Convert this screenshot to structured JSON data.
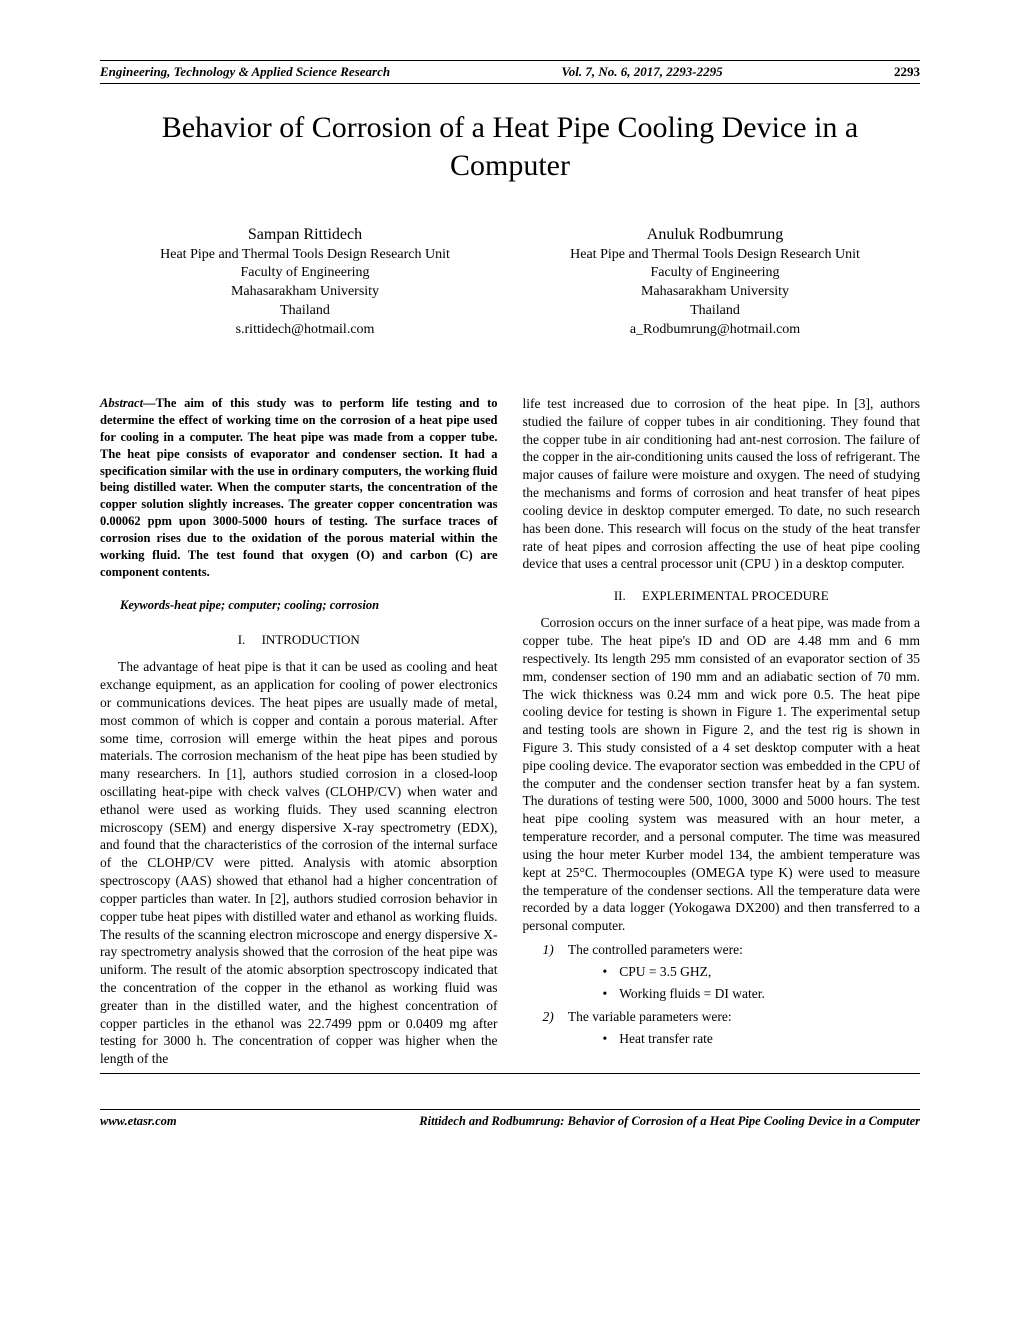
{
  "header": {
    "journal": "Engineering, Technology & Applied Science Research",
    "issue": "Vol. 7, No. 6, 2017, 2293-2295",
    "page": "2293"
  },
  "title": "Behavior of Corrosion of a Heat Pipe Cooling Device in a Computer",
  "authors": [
    {
      "name": "Sampan Rittidech",
      "unit": "Heat Pipe and Thermal Tools Design Research Unit",
      "faculty": "Faculty of Engineering",
      "university": "Mahasarakham University",
      "country": "Thailand",
      "email": "s.rittidech@hotmail.com"
    },
    {
      "name": "Anuluk Rodbumrung",
      "unit": "Heat Pipe and Thermal Tools Design Research Unit",
      "faculty": "Faculty of Engineering",
      "university": "Mahasarakham University",
      "country": "Thailand",
      "email": "a_Rodbumrung@hotmail.com"
    }
  ],
  "abstract": {
    "label": "Abstract—",
    "text": "The aim of this study was to perform life testing and to determine the effect of working time on the corrosion of a heat pipe used for cooling in a computer. The heat pipe was made from a copper tube. The heat pipe consists of evaporator and condenser section. It had a specification similar with the use in ordinary computers, the working fluid being distilled water. When the computer starts, the concentration of the copper solution slightly increases. The greater copper concentration was 0.00062 ppm upon 3000-5000 hours of testing. The surface traces of corrosion rises due to the oxidation of the porous material within the working fluid. The test found that oxygen (O) and carbon (C) are component contents."
  },
  "keywords": "Keywords-heat pipe; computer; cooling; corrosion",
  "sections": {
    "intro": {
      "num": "I.",
      "name": "INTRODUCTION",
      "para1": "The advantage of heat pipe is that it can be used as cooling and heat exchange equipment, as an application for cooling of power electronics or communications devices. The heat pipes are usually made of metal, most common of which is copper and contain a porous material. After some time, corrosion will emerge within the heat pipes and porous materials. The corrosion mechanism of the heat pipe has been studied by many researchers. In [1], authors studied corrosion in a closed-loop oscillating heat-pipe with check valves (CLOHP/CV) when water and ethanol were used as working fluids. They used scanning electron microscopy (SEM) and energy dispersive X-ray spectrometry (EDX), and found that the characteristics of the corrosion of the internal surface of the CLOHP/CV were pitted. Analysis with atomic absorption spectroscopy (AAS) showed that ethanol had a higher concentration of copper particles than water. In [2], authors studied corrosion behavior in copper tube heat pipes with distilled water and ethanol as working fluids. The results of the scanning electron microscope and energy dispersive X-ray spectrometry analysis showed that the corrosion of the heat pipe was uniform. The result of the atomic absorption spectroscopy indicated that the concentration of the copper in the ethanol as working fluid was greater than in the distilled water, and the highest concentration of copper particles in the ethanol was 22.7499 ppm or 0.0409 mg after testing for 3000 h. The concentration of copper was higher when the length of the",
      "para1_cont": "life test increased due to corrosion of the heat pipe. In [3], authors studied the failure of copper tubes in air conditioning. They found that the copper tube in air conditioning had ant-nest corrosion. The failure of the copper in the air-conditioning units caused the loss of refrigerant. The major causes of failure were moisture and oxygen. The need of studying the mechanisms and forms of corrosion and heat transfer of heat pipes cooling device in desktop computer emerged. To date, no such research has been done. This research will focus on the study of the heat transfer rate of heat pipes and corrosion affecting the use of heat pipe cooling device that uses a central processor unit (CPU ) in a desktop computer."
    },
    "exp": {
      "num": "II.",
      "name": "EXPLERIMENTAL PROCEDURE",
      "para1": "Corrosion occurs on the inner surface of a heat pipe, was made from a copper tube. The heat pipe's ID and OD are 4.48 mm and 6 mm respectively. Its length 295 mm consisted of an evaporator section of 35 mm, condenser section of 190 mm and an adiabatic section of 70 mm. The wick thickness was 0.24 mm and wick pore 0.5. The heat pipe cooling device for testing is shown in Figure 1. The experimental setup and testing tools are shown in Figure 2, and the test rig is shown in Figure 3. This study consisted of a 4 set desktop computer with a heat pipe cooling device. The evaporator section was embedded in the CPU of the computer and the condenser section transfer heat by a fan system. The durations of testing were 500, 1000, 3000 and 5000 hours. The test heat pipe cooling system was measured with an hour meter, a temperature recorder, and a personal computer. The time was measured using the hour meter Kurber model 134, the ambient temperature was kept at 25°C. Thermocouples (OMEGA type K) were used to measure the temperature of the condenser sections. All the temperature data were recorded by a data logger (Yokogawa DX200) and then transferred to a personal computer."
    },
    "params": {
      "item1": {
        "num": "1)",
        "text": "The controlled parameters were:",
        "bullets": [
          "CPU = 3.5 GHZ,",
          "Working fluids = DI water."
        ]
      },
      "item2": {
        "num": "2)",
        "text": "The variable parameters were:",
        "bullets": [
          "Heat transfer rate"
        ]
      }
    }
  },
  "footer": {
    "url": "www.etasr.com",
    "citation": "Rittidech and Rodbumrung: Behavior of Corrosion of a Heat Pipe Cooling Device in a Computer"
  }
}
